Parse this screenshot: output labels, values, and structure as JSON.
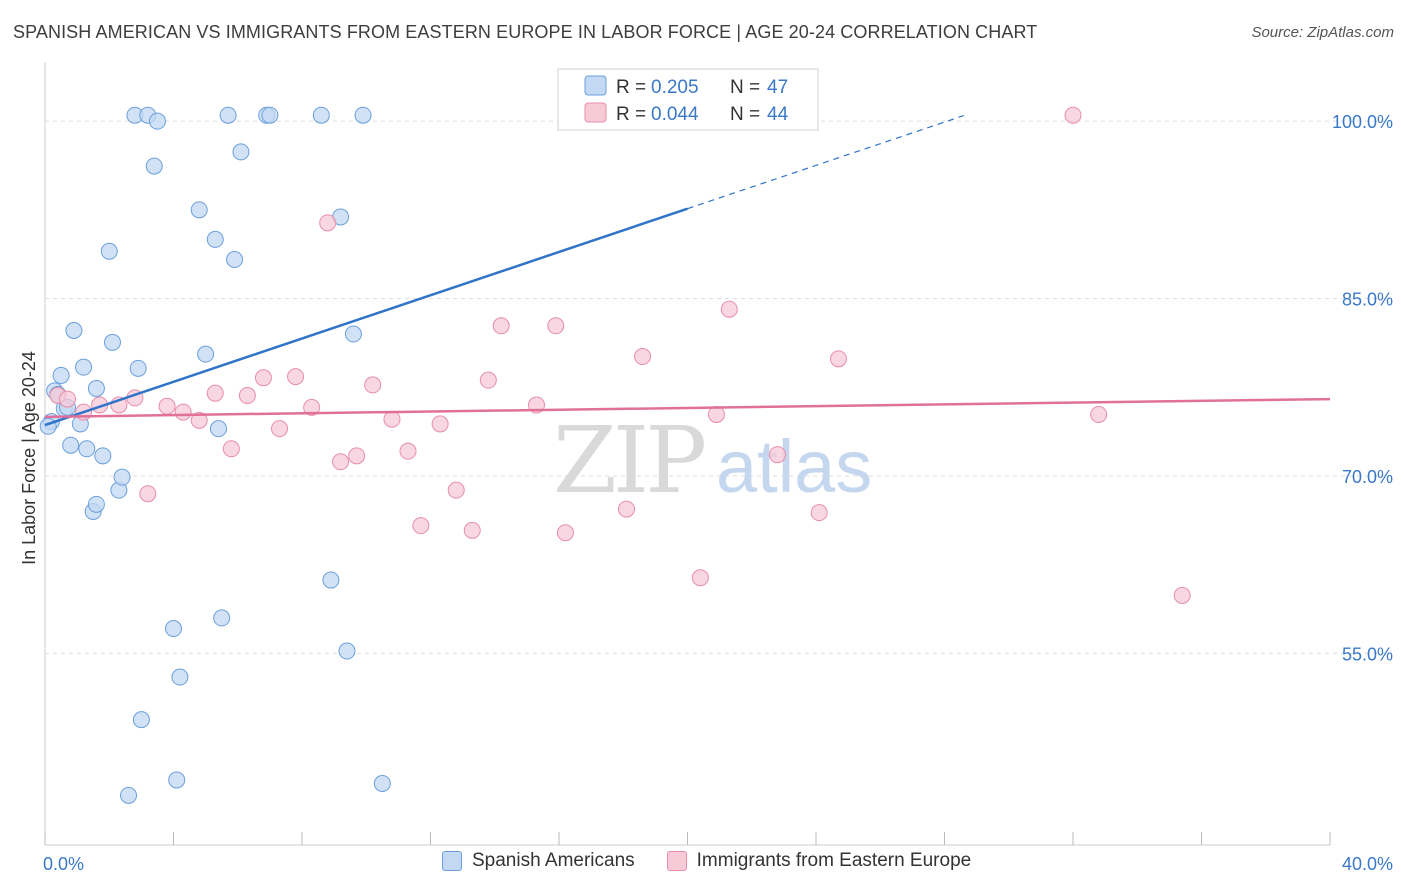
{
  "title": "SPANISH AMERICAN VS IMMIGRANTS FROM EASTERN EUROPE IN LABOR FORCE | AGE 20-24 CORRELATION CHART",
  "source": "Source: ZipAtlas.com",
  "watermark": {
    "zip": "ZIP",
    "atlas": "atlas"
  },
  "colors": {
    "blue_fill": "#c3d8f3",
    "blue_stroke": "#6a9fdc",
    "blue_line": "#2f74c9",
    "pink_fill": "#f7cad8",
    "pink_stroke": "#e88eaa",
    "pink_line": "#e0709a",
    "value_text": "#3a78c8",
    "grid": "#dddddd"
  },
  "legend_box": {
    "rows": [
      {
        "r_label": "R =",
        "r_value": "0.205",
        "n_label": "N =",
        "n_value": "47",
        "series": "blue"
      },
      {
        "r_label": "R =",
        "r_value": "0.044",
        "n_label": "N =",
        "n_value": "44",
        "series": "pink"
      }
    ]
  },
  "bottom_legend": [
    {
      "label": "Spanish Americans",
      "series": "blue"
    },
    {
      "label": "Immigrants from Eastern Europe",
      "series": "pink"
    }
  ],
  "chart_data": {
    "type": "scatter",
    "title": "SPANISH AMERICAN VS IMMIGRANTS FROM EASTERN EUROPE IN LABOR FORCE | AGE 20-24 CORRELATION CHART",
    "xlabel": "",
    "ylabel": "In Labor Force | Age 20-24",
    "xlim": [
      0,
      40
    ],
    "ylim": [
      38.8,
      105
    ],
    "x_tick_labels": [
      {
        "value": 0,
        "label": "0.0%"
      },
      {
        "value": 40,
        "label": "40.0%"
      }
    ],
    "y_tick_labels": [
      {
        "value": 100,
        "label": "100.0%"
      },
      {
        "value": 85,
        "label": "85.0%"
      },
      {
        "value": 70,
        "label": "70.0%"
      },
      {
        "value": 55,
        "label": "55.0%"
      }
    ],
    "x_minor_ticks": [
      0,
      4,
      8,
      12,
      16,
      20,
      24,
      28,
      32,
      36,
      40
    ],
    "grid": true,
    "legend_position": "top-center",
    "series": [
      {
        "name": "Spanish Americans",
        "color": "blue",
        "r": 0.205,
        "n": 47,
        "points": [
          [
            0.2,
            74.6
          ],
          [
            0.3,
            77.2
          ],
          [
            0.4,
            76.9
          ],
          [
            0.5,
            78.5
          ],
          [
            0.6,
            75.7
          ],
          [
            0.7,
            75.8
          ],
          [
            0.8,
            72.6
          ],
          [
            0.9,
            82.3
          ],
          [
            1.1,
            74.4
          ],
          [
            1.2,
            79.2
          ],
          [
            1.3,
            72.3
          ],
          [
            1.5,
            67.0
          ],
          [
            1.6,
            77.4
          ],
          [
            1.6,
            67.6
          ],
          [
            1.8,
            71.7
          ],
          [
            2.0,
            89.0
          ],
          [
            2.1,
            81.3
          ],
          [
            2.3,
            68.8
          ],
          [
            2.4,
            69.9
          ],
          [
            2.6,
            43.0
          ],
          [
            2.8,
            100.5
          ],
          [
            2.9,
            79.1
          ],
          [
            3.0,
            49.4
          ],
          [
            3.2,
            100.5
          ],
          [
            3.4,
            96.2
          ],
          [
            3.5,
            100.0
          ],
          [
            4.0,
            57.1
          ],
          [
            4.1,
            44.3
          ],
          [
            4.2,
            53.0
          ],
          [
            4.8,
            92.5
          ],
          [
            5.0,
            80.3
          ],
          [
            5.3,
            90.0
          ],
          [
            5.4,
            74.0
          ],
          [
            5.5,
            58.0
          ],
          [
            5.7,
            100.5
          ],
          [
            5.9,
            88.3
          ],
          [
            6.1,
            97.4
          ],
          [
            6.9,
            100.5
          ],
          [
            7.0,
            100.5
          ],
          [
            8.6,
            100.5
          ],
          [
            8.9,
            61.2
          ],
          [
            9.2,
            91.9
          ],
          [
            9.4,
            55.2
          ],
          [
            9.6,
            82.0
          ],
          [
            9.9,
            100.5
          ],
          [
            10.5,
            44.0
          ],
          [
            0.1,
            74.2
          ]
        ]
      },
      {
        "name": "Immigrants from Eastern Europe",
        "color": "pink",
        "r": 0.044,
        "n": 44,
        "points": [
          [
            0.4,
            76.8
          ],
          [
            0.7,
            76.5
          ],
          [
            1.2,
            75.4
          ],
          [
            1.7,
            76.0
          ],
          [
            2.3,
            76.0
          ],
          [
            2.8,
            76.6
          ],
          [
            3.2,
            68.5
          ],
          [
            3.8,
            75.9
          ],
          [
            4.3,
            75.4
          ],
          [
            4.8,
            74.7
          ],
          [
            5.3,
            77.0
          ],
          [
            5.8,
            72.3
          ],
          [
            6.3,
            76.8
          ],
          [
            6.8,
            78.3
          ],
          [
            7.3,
            74.0
          ],
          [
            7.8,
            78.4
          ],
          [
            8.3,
            75.8
          ],
          [
            8.8,
            91.4
          ],
          [
            9.2,
            71.2
          ],
          [
            9.7,
            71.7
          ],
          [
            10.2,
            77.7
          ],
          [
            10.8,
            74.8
          ],
          [
            11.3,
            72.1
          ],
          [
            12.3,
            74.4
          ],
          [
            11.7,
            65.8
          ],
          [
            12.8,
            68.8
          ],
          [
            13.3,
            65.4
          ],
          [
            13.8,
            78.1
          ],
          [
            14.2,
            82.7
          ],
          [
            15.3,
            76.0
          ],
          [
            15.9,
            82.7
          ],
          [
            16.2,
            65.2
          ],
          [
            18.1,
            67.2
          ],
          [
            18.6,
            80.1
          ],
          [
            20.0,
            100.5
          ],
          [
            20.4,
            61.4
          ],
          [
            20.9,
            75.2
          ],
          [
            21.3,
            84.1
          ],
          [
            22.8,
            71.8
          ],
          [
            24.1,
            66.9
          ],
          [
            24.7,
            79.9
          ],
          [
            32.0,
            100.5
          ],
          [
            32.8,
            75.2
          ],
          [
            35.4,
            59.9
          ]
        ]
      }
    ],
    "trend_lines": [
      {
        "series": "Spanish Americans",
        "x": [
          0,
          20
        ],
        "y": [
          74.3,
          92.6
        ],
        "dashed_extension_to_x": 28.6
      },
      {
        "series": "Immigrants from Eastern Europe",
        "x": [
          0,
          40
        ],
        "y": [
          75.0,
          76.5
        ]
      }
    ]
  }
}
